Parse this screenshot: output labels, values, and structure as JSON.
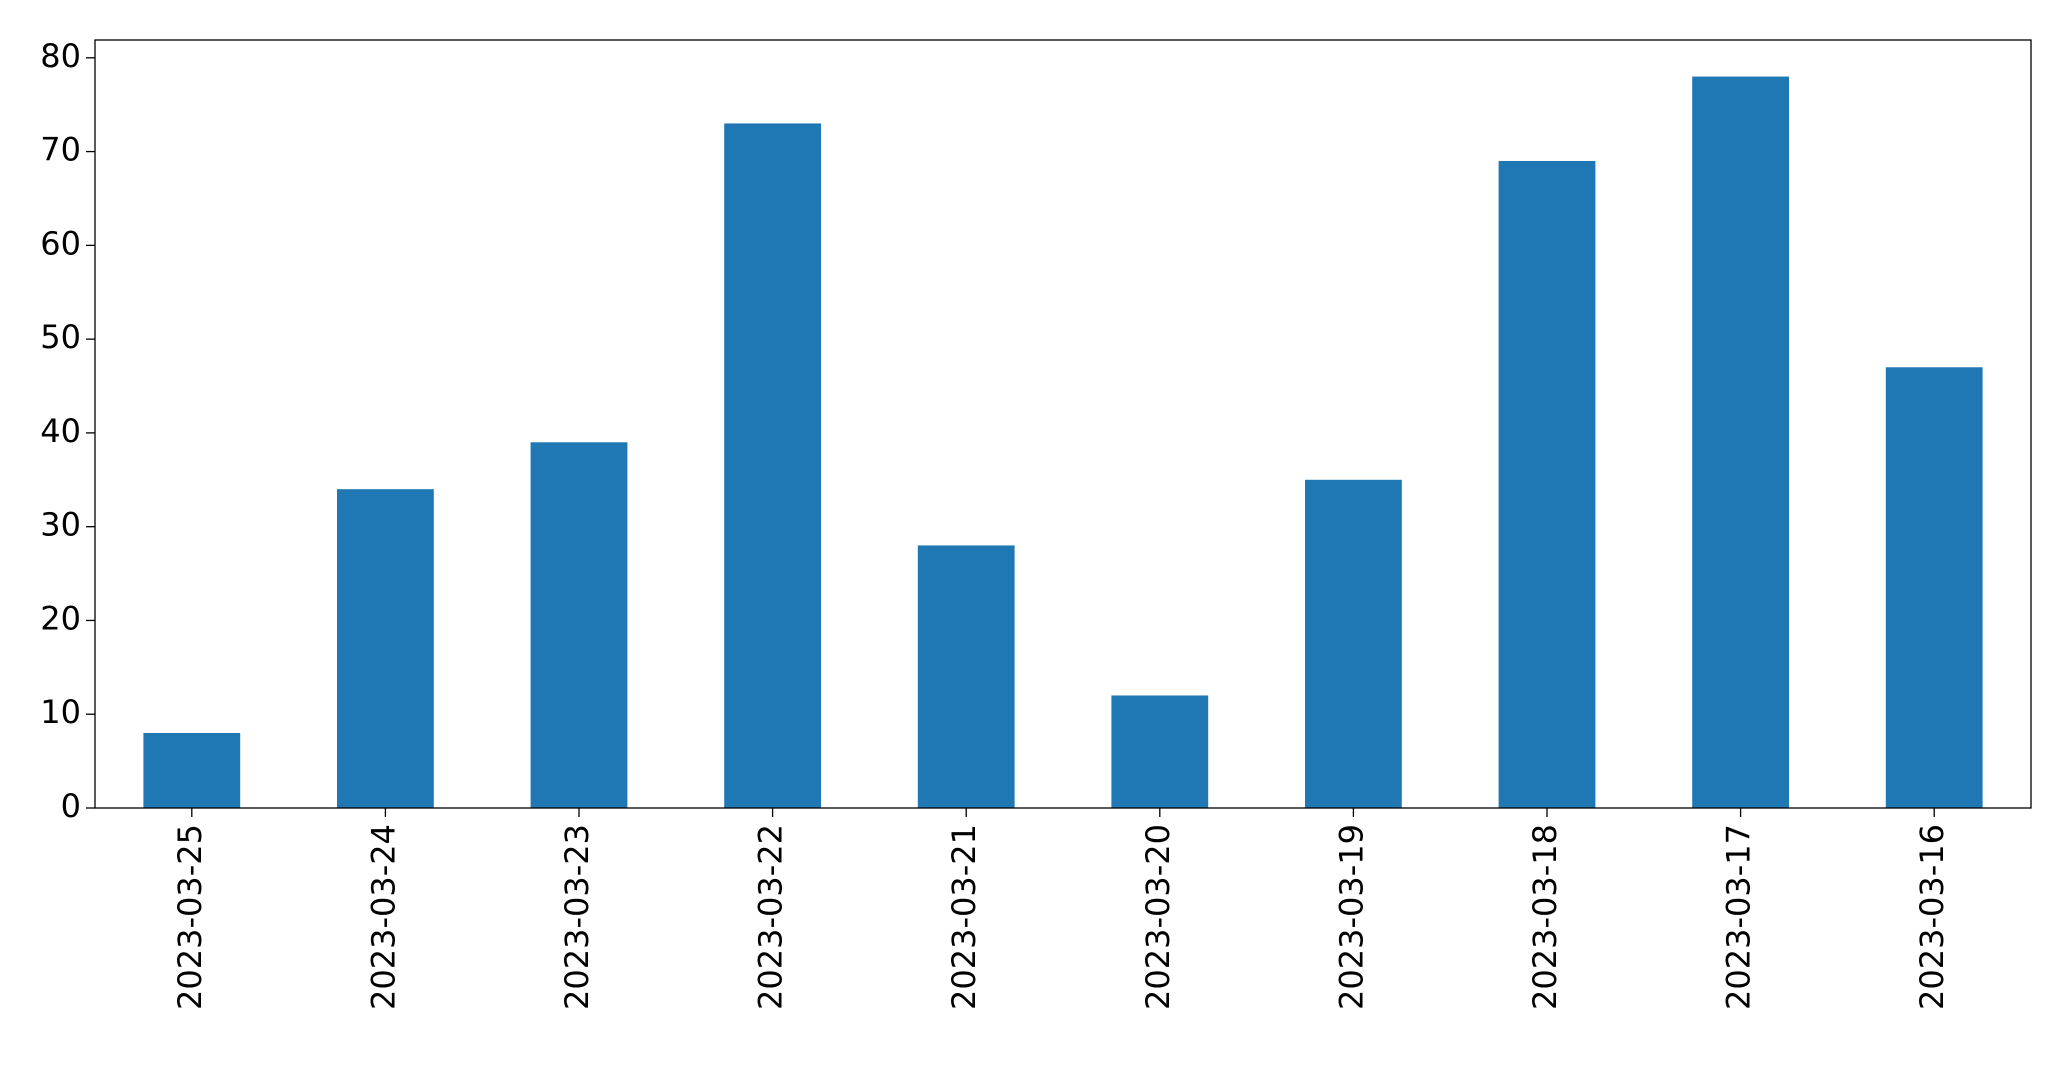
{
  "chart_data": {
    "type": "bar",
    "categories": [
      "2023-03-25",
      "2023-03-24",
      "2023-03-23",
      "2023-03-22",
      "2023-03-21",
      "2023-03-20",
      "2023-03-19",
      "2023-03-18",
      "2023-03-17",
      "2023-03-16"
    ],
    "values": [
      8,
      34,
      39,
      73,
      28,
      12,
      35,
      69,
      78,
      47
    ],
    "color": "#1f77b4",
    "ylim": [
      0,
      81.9
    ],
    "yticks": [
      0,
      10,
      20,
      30,
      40,
      50,
      60,
      70,
      80
    ],
    "grid": false
  }
}
